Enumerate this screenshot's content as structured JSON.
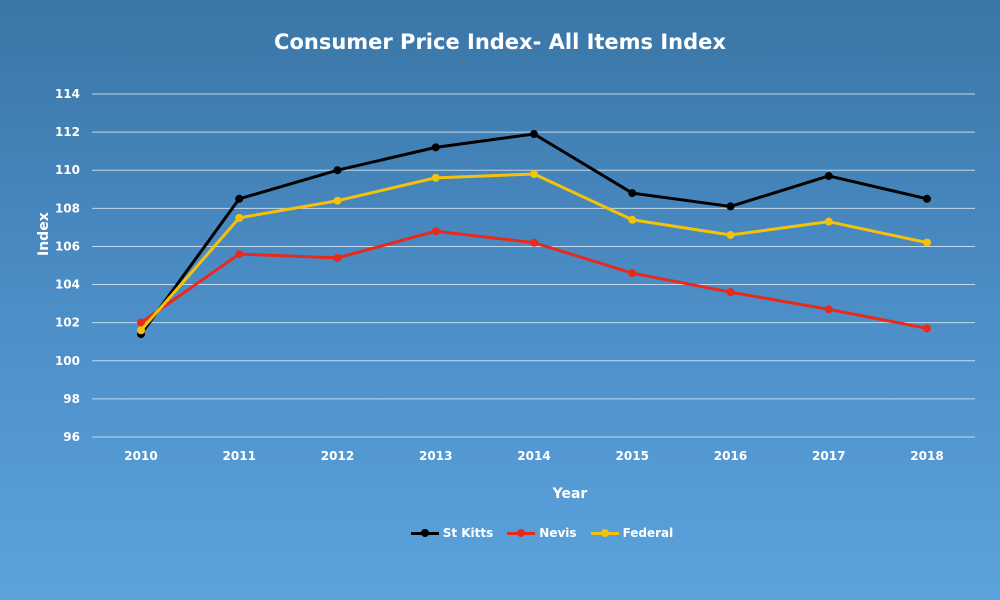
{
  "chart_data": {
    "type": "line",
    "title": "Consumer Price Index- All Items Index",
    "xlabel": "Year",
    "ylabel": "Index",
    "ylim": [
      96,
      114
    ],
    "yticks": [
      "96",
      "98",
      "100",
      "102",
      "104",
      "106",
      "108",
      "110",
      "112",
      "114"
    ],
    "categories": [
      "2010",
      "2011",
      "2012",
      "2013",
      "2014",
      "2015",
      "2016",
      "2017",
      "2018"
    ],
    "grid": true,
    "legend_position": "bottom",
    "series": [
      {
        "name": "St Kitts",
        "color": "#000000",
        "values": [
          101.4,
          108.5,
          110.0,
          111.2,
          111.9,
          108.8,
          108.1,
          109.7,
          108.5
        ]
      },
      {
        "name": "Nevis",
        "color": "#e8291c",
        "values": [
          102.0,
          105.6,
          105.4,
          106.8,
          106.2,
          104.6,
          103.6,
          102.7,
          101.7
        ]
      },
      {
        "name": "Federal",
        "color": "#f5c20a",
        "values": [
          101.6,
          107.5,
          108.4,
          109.6,
          109.8,
          107.4,
          106.6,
          107.3,
          106.2
        ]
      }
    ]
  }
}
